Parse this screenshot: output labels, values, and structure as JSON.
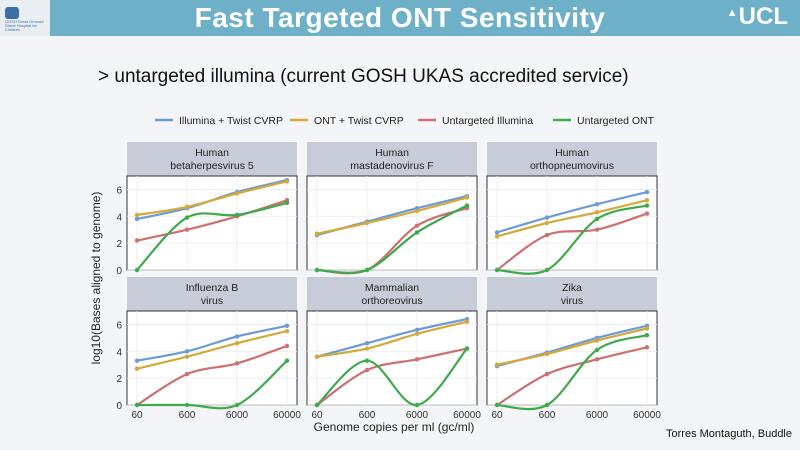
{
  "slide": {
    "title": "Fast Targeted ONT Sensitivity",
    "subtitle": "> untargeted illumina (current GOSH UKAS accredited service)",
    "credit": "Torres Montaguth, Buddle",
    "left_logo_text": "GOSH Great Ormond Street Hospital for Children",
    "right_logo_text": "UCL",
    "right_logo_icon": "dome-icon"
  },
  "chart_data": {
    "type": "line",
    "xlabel": "Genome copies per ml (gc/ml)",
    "ylabel": "log10(Bases aligned to genome)",
    "x": [
      60,
      600,
      6000,
      60000
    ],
    "x_scale": "log",
    "ylim": [
      0,
      7
    ],
    "yticks": [
      0,
      2,
      4,
      6
    ],
    "legend_position": "top",
    "series_colors": {
      "Illumina + Twist CVRP": "#6b9bd8",
      "ONT + Twist CVRP": "#d4a93a",
      "Untargeted Illumina": "#cf6f6f",
      "Untargeted ONT": "#3daa4c"
    },
    "panels": [
      {
        "title_line1": "Human",
        "title_line2": "betaherpesvirus 5",
        "series": [
          {
            "name": "Illumina + Twist CVRP",
            "values": [
              3.8,
              4.6,
              5.8,
              6.7
            ]
          },
          {
            "name": "ONT + Twist CVRP",
            "values": [
              4.1,
              4.7,
              5.7,
              6.6
            ]
          },
          {
            "name": "Untargeted Illumina",
            "values": [
              2.2,
              3.0,
              4.0,
              5.2
            ]
          },
          {
            "name": "Untargeted ONT",
            "values": [
              0,
              3.9,
              4.1,
              5.0
            ]
          }
        ]
      },
      {
        "title_line1": "Human",
        "title_line2": "mastadenovirus F",
        "series": [
          {
            "name": "Illumina + Twist CVRP",
            "values": [
              2.6,
              3.6,
              4.6,
              5.5
            ]
          },
          {
            "name": "ONT + Twist CVRP",
            "values": [
              2.7,
              3.5,
              4.4,
              5.4
            ]
          },
          {
            "name": "Untargeted Illumina",
            "values": [
              0,
              0,
              3.3,
              4.6
            ]
          },
          {
            "name": "Untargeted ONT",
            "values": [
              0,
              0,
              2.8,
              4.8
            ]
          }
        ]
      },
      {
        "title_line1": "Human",
        "title_line2": "orthopneumovirus",
        "series": [
          {
            "name": "Illumina + Twist CVRP",
            "values": [
              2.8,
              3.9,
              4.9,
              5.8
            ]
          },
          {
            "name": "ONT + Twist CVRP",
            "values": [
              2.5,
              3.5,
              4.3,
              5.2
            ]
          },
          {
            "name": "Untargeted Illumina",
            "values": [
              0,
              2.6,
              3.0,
              4.2
            ]
          },
          {
            "name": "Untargeted ONT",
            "values": [
              0,
              0,
              3.8,
              4.8
            ]
          }
        ]
      },
      {
        "title_line1": "Influenza B",
        "title_line2": "virus",
        "series": [
          {
            "name": "Illumina + Twist CVRP",
            "values": [
              3.3,
              4.0,
              5.1,
              5.9
            ]
          },
          {
            "name": "ONT + Twist CVRP",
            "values": [
              2.7,
              3.6,
              4.6,
              5.5
            ]
          },
          {
            "name": "Untargeted Illumina",
            "values": [
              0,
              2.3,
              3.1,
              4.4
            ]
          },
          {
            "name": "Untargeted ONT",
            "values": [
              0,
              0,
              0,
              3.3
            ]
          }
        ]
      },
      {
        "title_line1": "Mammalian",
        "title_line2": "orthoreovirus",
        "series": [
          {
            "name": "Illumina + Twist CVRP",
            "values": [
              3.6,
              4.6,
              5.6,
              6.4
            ]
          },
          {
            "name": "ONT + Twist CVRP",
            "values": [
              3.6,
              4.2,
              5.3,
              6.2
            ]
          },
          {
            "name": "Untargeted Illumina",
            "values": [
              0,
              2.6,
              3.4,
              4.2
            ]
          },
          {
            "name": "Untargeted ONT",
            "values": [
              0,
              3.3,
              0,
              4.2
            ]
          }
        ]
      },
      {
        "title_line1": "Zika",
        "title_line2": "virus",
        "series": [
          {
            "name": "Illumina + Twist CVRP",
            "values": [
              2.9,
              3.9,
              5.0,
              5.9
            ]
          },
          {
            "name": "ONT + Twist CVRP",
            "values": [
              3.0,
              3.8,
              4.8,
              5.7
            ]
          },
          {
            "name": "Untargeted Illumina",
            "values": [
              0,
              2.3,
              3.4,
              4.3
            ]
          },
          {
            "name": "Untargeted ONT",
            "values": [
              0,
              0,
              4.1,
              5.2
            ]
          }
        ]
      }
    ]
  }
}
